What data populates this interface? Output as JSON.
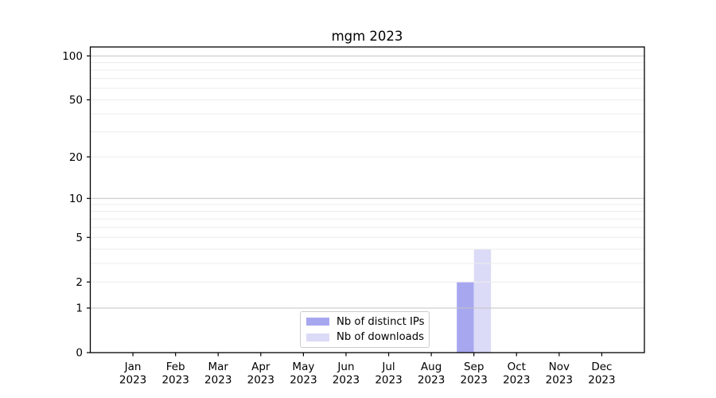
{
  "colors": {
    "background": "#ffffff",
    "axis": "#000000",
    "grid_major": "#c3c3c3",
    "grid_minor": "#ececec",
    "text": "#000000",
    "legend_border": "#cccccc"
  },
  "chart_data": {
    "type": "bar",
    "title": "mgm 2023",
    "xlabel": "",
    "ylabel": "",
    "categories": [
      "Jan 2023",
      "Feb 2023",
      "Mar 2023",
      "Apr 2023",
      "May 2023",
      "Jun 2023",
      "Jul 2023",
      "Aug 2023",
      "Sep 2023",
      "Oct 2023",
      "Nov 2023",
      "Dec 2023"
    ],
    "series": [
      {
        "name": "Nb of distinct IPs",
        "color": "#a7a7f0",
        "values": [
          0,
          0,
          0,
          0,
          0,
          0,
          0,
          0,
          2,
          0,
          0,
          0
        ]
      },
      {
        "name": "Nb of downloads",
        "color": "#dbdbf7",
        "values": [
          0,
          0,
          0,
          0,
          0,
          0,
          0,
          0,
          4,
          0,
          0,
          0
        ]
      }
    ],
    "y_axis": {
      "scale": "log1p",
      "ylim": [
        0,
        115
      ],
      "major_ticks": [
        0,
        1,
        2,
        5,
        10,
        20,
        50,
        100
      ],
      "decade_gridlines": [
        1,
        10,
        100
      ],
      "minor_gridlines": [
        3,
        4,
        6,
        7,
        8,
        9,
        30,
        40,
        60,
        70,
        80,
        90
      ]
    },
    "grid": true,
    "legend_position": "lower center"
  }
}
